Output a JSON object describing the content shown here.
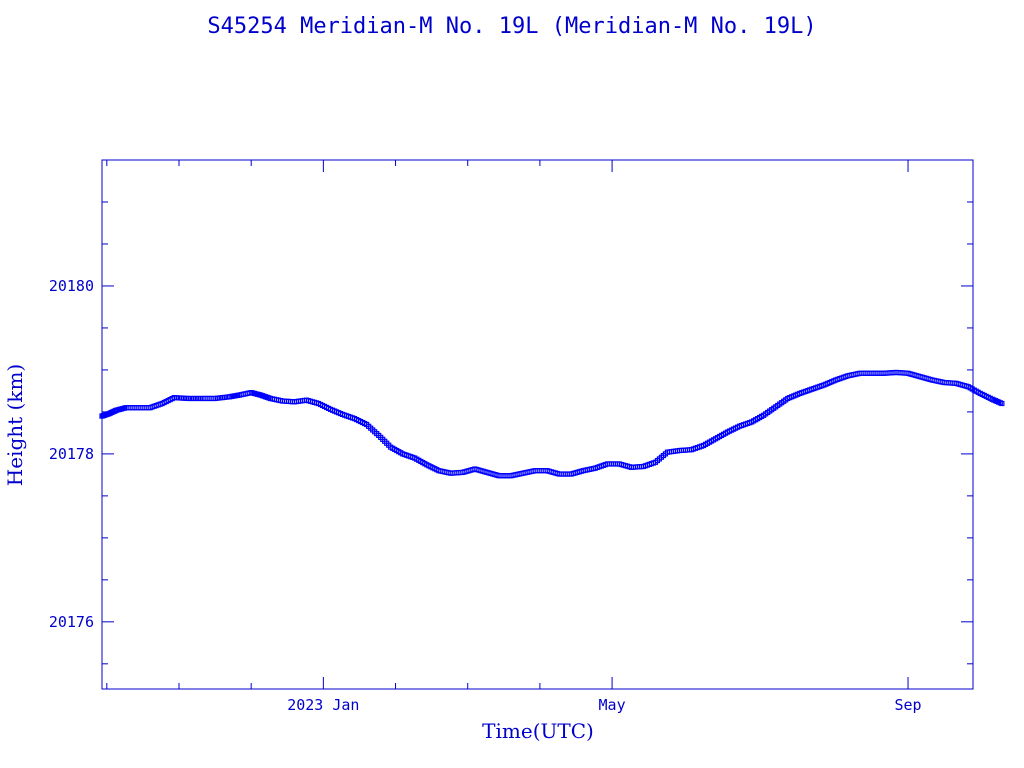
{
  "chart_data": {
    "type": "scatter",
    "title": "S45254 Meridian-M No. 19L  (Meridian-M No. 19L)",
    "xlabel": "Time(UTC)",
    "ylabel": "Height (km)",
    "x_unit": "days since 2022-10-01",
    "xlim": [
      0,
      362
    ],
    "ylim": [
      20175.2,
      20181.5
    ],
    "yticks": [
      20176,
      20178,
      20180
    ],
    "ytick_labels": [
      "20176",
      "20178",
      "20180"
    ],
    "xticks": [
      92,
      212,
      335
    ],
    "xtick_labels": [
      "2023 Jan",
      "May",
      "Sep"
    ],
    "grid": false,
    "color": "#0000ff",
    "series": [
      {
        "name": "Height",
        "points": [
          [
            0,
            20178.45
          ],
          [
            3,
            20178.48
          ],
          [
            6,
            20178.52
          ],
          [
            10,
            20178.55
          ],
          [
            15,
            20178.55
          ],
          [
            20,
            20178.55
          ],
          [
            25,
            20178.6
          ],
          [
            30,
            20178.67
          ],
          [
            36,
            20178.66
          ],
          [
            42,
            20178.66
          ],
          [
            47,
            20178.66
          ],
          [
            53,
            20178.68
          ],
          [
            57,
            20178.7
          ],
          [
            62,
            20178.73
          ],
          [
            66,
            20178.7
          ],
          [
            70,
            20178.66
          ],
          [
            75,
            20178.63
          ],
          [
            80,
            20178.62
          ],
          [
            85,
            20178.64
          ],
          [
            90,
            20178.6
          ],
          [
            95,
            20178.53
          ],
          [
            100,
            20178.47
          ],
          [
            105,
            20178.42
          ],
          [
            110,
            20178.35
          ],
          [
            115,
            20178.22
          ],
          [
            120,
            20178.08
          ],
          [
            125,
            20178.0
          ],
          [
            130,
            20177.95
          ],
          [
            135,
            20177.87
          ],
          [
            140,
            20177.8
          ],
          [
            145,
            20177.77
          ],
          [
            150,
            20177.78
          ],
          [
            155,
            20177.82
          ],
          [
            160,
            20177.78
          ],
          [
            165,
            20177.74
          ],
          [
            170,
            20177.74
          ],
          [
            175,
            20177.77
          ],
          [
            180,
            20177.8
          ],
          [
            185,
            20177.8
          ],
          [
            190,
            20177.76
          ],
          [
            195,
            20177.76
          ],
          [
            200,
            20177.8
          ],
          [
            205,
            20177.83
          ],
          [
            210,
            20177.88
          ],
          [
            215,
            20177.88
          ],
          [
            220,
            20177.84
          ],
          [
            225,
            20177.85
          ],
          [
            230,
            20177.9
          ],
          [
            235,
            20178.02
          ],
          [
            240,
            20178.04
          ],
          [
            245,
            20178.05
          ],
          [
            250,
            20178.1
          ],
          [
            255,
            20178.18
          ],
          [
            260,
            20178.26
          ],
          [
            265,
            20178.33
          ],
          [
            270,
            20178.38
          ],
          [
            275,
            20178.46
          ],
          [
            280,
            20178.56
          ],
          [
            285,
            20178.66
          ],
          [
            290,
            20178.72
          ],
          [
            295,
            20178.77
          ],
          [
            300,
            20178.82
          ],
          [
            305,
            20178.88
          ],
          [
            310,
            20178.93
          ],
          [
            315,
            20178.96
          ],
          [
            320,
            20178.96
          ],
          [
            325,
            20178.96
          ],
          [
            330,
            20178.97
          ],
          [
            335,
            20178.96
          ],
          [
            340,
            20178.92
          ],
          [
            345,
            20178.88
          ],
          [
            350,
            20178.85
          ],
          [
            355,
            20178.84
          ],
          [
            360,
            20178.8
          ],
          [
            365,
            20178.72
          ],
          [
            370,
            20178.65
          ],
          [
            374,
            20178.6
          ]
        ]
      }
    ]
  }
}
